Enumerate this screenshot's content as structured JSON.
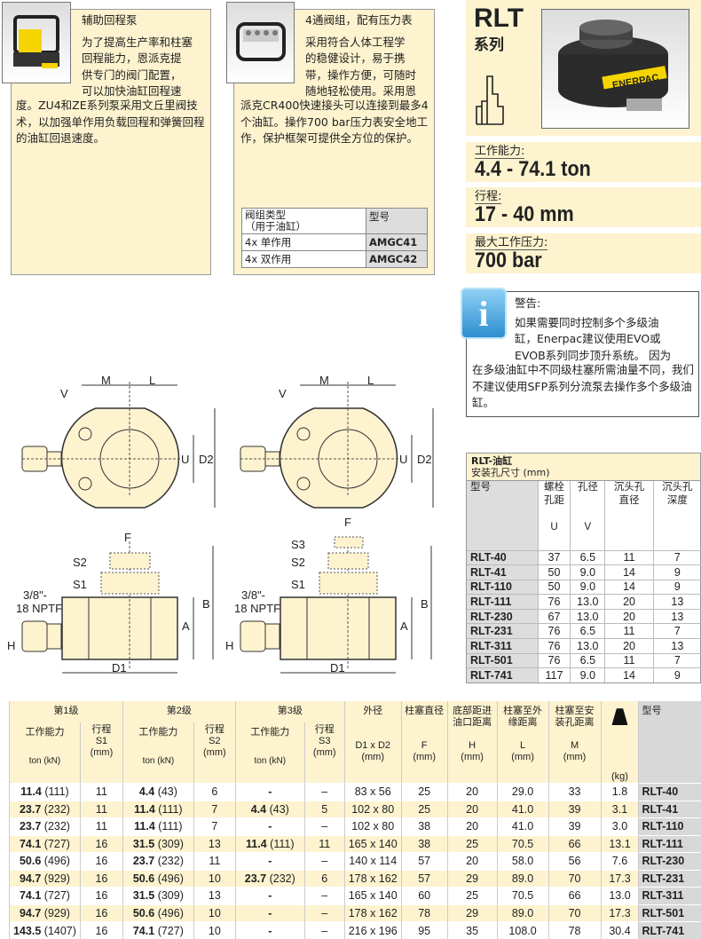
{
  "pump_box": {
    "title": "辅助回程泵",
    "text_wrapped": [
      "为了提高生产率和柱塞",
      "回程能力，恩派克提",
      "供专门的阀门配置，",
      "可以加快油缸回程速"
    ],
    "text_full": "度。ZU4和ZE系列泵采用文丘里阀技术，以加强单作用负载回程和弹簧回程的油缸回退速度。"
  },
  "valve_box": {
    "title": "4通阀组，配有压力表",
    "text_wrapped": [
      "采用符合人体工程学",
      "的稳健设计，易于携",
      "带，操作方便，可随时",
      "随地轻松使用。采用恩"
    ],
    "text_full": "派克CR400快速接头可以连接到最多4个油缸。操作700 bar压力表安全地工作，保护框架可提供全方位的保护。",
    "table": {
      "head_type": "阀组类型",
      "head_type2": "（用于油缸）",
      "head_model": "型号",
      "rows": [
        {
          "type": "4x 单作用",
          "model": "AMGC41"
        },
        {
          "type": "4x 双作用",
          "model": "AMGC42"
        }
      ]
    }
  },
  "series": {
    "name": "RLT",
    "suffix": "系列",
    "brand_label": "ENERPAC"
  },
  "specs": [
    {
      "label": "工作能力:",
      "value": "4.4 - 74.1 ton"
    },
    {
      "label": "行程:",
      "value": "17 - 40 mm"
    },
    {
      "label": "最大工作压力:",
      "value": "700 bar"
    }
  ],
  "warning": {
    "icon": "info-icon",
    "title": "警告:",
    "lines_wrapped": [
      "如果需要同时控制多个多级油",
      "缸，Enerpac建议使用EVO或",
      "EVOB系列同步顶升系统。 因为"
    ],
    "text_full": "在多级油缸中不同级柱塞所需油量不同，我们不建议使用SFP系列分流泵去操作多个多级油缸。"
  },
  "diagram_labels": {
    "M": "M",
    "L": "L",
    "V": "V",
    "U": "U",
    "D2": "D2",
    "F": "F",
    "S1": "S1",
    "S2": "S2",
    "S3": "S3",
    "A": "A",
    "B": "B",
    "H": "H",
    "D1": "D1",
    "port1": "3/8\"-",
    "port2": "18 NPTF"
  },
  "mount_table": {
    "title": "RLT-油缸",
    "subtitle": "安装孔尺寸 (mm)",
    "headers": [
      "型号",
      "螺栓\n孔距\n\nU",
      "孔径\n\n\nV",
      "沉头孔\n直径",
      "沉头孔\n深度"
    ],
    "rows": [
      [
        "RLT-40",
        "37",
        "6.5",
        "11",
        "7"
      ],
      [
        "RLT-41",
        "50",
        "9.0",
        "14",
        "9"
      ],
      [
        "RLT-110",
        "50",
        "9.0",
        "14",
        "9"
      ],
      [
        "RLT-111",
        "76",
        "13.0",
        "20",
        "13"
      ],
      [
        "RLT-230",
        "67",
        "13.0",
        "20",
        "13"
      ],
      [
        "RLT-231",
        "76",
        "6.5",
        "11",
        "7"
      ],
      [
        "RLT-311",
        "76",
        "13.0",
        "20",
        "13"
      ],
      [
        "RLT-501",
        "76",
        "6.5",
        "11",
        "7"
      ],
      [
        "RLT-741",
        "117",
        "9.0",
        "14",
        "9"
      ]
    ]
  },
  "main_table": {
    "groups": [
      "第1级",
      "第2级",
      "第3级"
    ],
    "sub_cap": "工作能力",
    "sub_cap_unit": "ton (kN)",
    "sub_stroke": [
      "行程\nS1\n(mm)",
      "行程\nS2\n(mm)",
      "行程\nS3\n(mm)"
    ],
    "cols": [
      "外径\n\n\nD1 x D2\n(mm)",
      "柱塞直径\n\n\nF\n(mm)",
      "底部距进\n油口距离\n\nH\n(mm)",
      "柱塞至外\n缘距离\n\nL\n(mm)",
      "柱塞至安\n装孔距离\n\nM\n(mm)",
      "\n\n\n\n(kg)",
      "型号"
    ],
    "weight_icon": "weight-icon",
    "rows": [
      [
        [
          "11.4",
          "(111)"
        ],
        "11",
        [
          "4.4",
          "(43)"
        ],
        "6",
        [
          "-",
          ""
        ],
        "–",
        "83 x 56",
        "25",
        "20",
        "29.0",
        "33",
        "1.8",
        "RLT-40"
      ],
      [
        [
          "23.7",
          "(232)"
        ],
        "11",
        [
          "11.4",
          "(111)"
        ],
        "7",
        [
          "4.4",
          "(43)"
        ],
        "5",
        "102 x 80",
        "25",
        "20",
        "41.0",
        "39",
        "3.1",
        "RLT-41"
      ],
      [
        [
          "23.7",
          "(232)"
        ],
        "11",
        [
          "11.4",
          "(111)"
        ],
        "7",
        [
          "-",
          ""
        ],
        "–",
        "102 x 80",
        "38",
        "20",
        "41.0",
        "39",
        "3.0",
        "RLT-110"
      ],
      [
        [
          "74.1",
          "(727)"
        ],
        "16",
        [
          "31.5",
          "(309)"
        ],
        "13",
        [
          "11.4",
          "(111)"
        ],
        "11",
        "165 x 140",
        "38",
        "25",
        "70.5",
        "66",
        "13.1",
        "RLT-111"
      ],
      [
        [
          "50.6",
          "(496)"
        ],
        "16",
        [
          "23.7",
          "(232)"
        ],
        "11",
        [
          "-",
          ""
        ],
        "–",
        "140 x 114",
        "57",
        "20",
        "58.0",
        "56",
        "7.6",
        "RLT-230"
      ],
      [
        [
          "94.7",
          "(929)"
        ],
        "16",
        [
          "50.6",
          "(496)"
        ],
        "10",
        [
          "23.7",
          "(232)"
        ],
        "6",
        "178 x 162",
        "57",
        "29",
        "89.0",
        "70",
        "17.3",
        "RLT-231"
      ],
      [
        [
          "74.1",
          "(727)"
        ],
        "16",
        [
          "31.5",
          "(309)"
        ],
        "13",
        [
          "-",
          ""
        ],
        "–",
        "165 x 140",
        "60",
        "25",
        "70.5",
        "66",
        "13.0",
        "RLT-311"
      ],
      [
        [
          "94.7",
          "(929)"
        ],
        "16",
        [
          "50.6",
          "(496)"
        ],
        "10",
        [
          "-",
          ""
        ],
        "–",
        "178 x 162",
        "78",
        "29",
        "89.0",
        "70",
        "17.3",
        "RLT-501"
      ],
      [
        [
          "143.5",
          "(1407)"
        ],
        "16",
        [
          "74.1",
          "(727)"
        ],
        "10",
        [
          "-",
          ""
        ],
        "–",
        "216 x 196",
        "95",
        "35",
        "108.0",
        "78",
        "30.4",
        "RLT-741"
      ]
    ]
  },
  "colors": {
    "cream": "#fdf3cf",
    "gray": "#d8d8d8",
    "yellow": "#f5d400",
    "info_blue": "#3a9ad9"
  }
}
